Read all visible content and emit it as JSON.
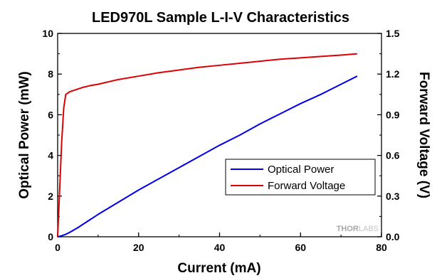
{
  "chart_data": {
    "type": "line",
    "title": "LED970L Sample L-I-V Characteristics",
    "xlabel": "Current (mA)",
    "ylabel": "Optical Power (mW)",
    "y2label": "Forward Voltage (V)",
    "xlim": [
      0,
      80
    ],
    "ylim": [
      0,
      10
    ],
    "y2lim": [
      0,
      1.5
    ],
    "xticks": [
      "0",
      "20",
      "40",
      "60",
      "80"
    ],
    "yticks": [
      "0",
      "2",
      "4",
      "6",
      "8",
      "10"
    ],
    "y2ticks": [
      "0.0",
      "0.3",
      "0.6",
      "0.9",
      "1.2",
      "1.5"
    ],
    "grid": false,
    "legend_position": "bottom-right",
    "series": [
      {
        "name": "Optical Power",
        "axis": "left",
        "color": "#0000ee",
        "x": [
          0,
          1,
          2,
          3,
          5,
          10,
          15,
          20,
          25,
          30,
          35,
          40,
          45,
          50,
          55,
          60,
          65,
          70,
          74
        ],
        "y": [
          0,
          0.05,
          0.12,
          0.22,
          0.45,
          1.1,
          1.7,
          2.3,
          2.85,
          3.4,
          3.95,
          4.5,
          5.0,
          5.55,
          6.05,
          6.55,
          7.0,
          7.5,
          7.9
        ]
      },
      {
        "name": "Forward Voltage",
        "axis": "right",
        "color": "#dd0000",
        "x": [
          0,
          0.5,
          1,
          1.5,
          2,
          3,
          4,
          6,
          8,
          10,
          15,
          20,
          25,
          30,
          35,
          40,
          45,
          50,
          55,
          60,
          65,
          70,
          74
        ],
        "y": [
          0,
          0.35,
          0.7,
          0.95,
          1.05,
          1.07,
          1.08,
          1.1,
          1.115,
          1.125,
          1.16,
          1.185,
          1.21,
          1.23,
          1.25,
          1.265,
          1.28,
          1.295,
          1.31,
          1.32,
          1.33,
          1.34,
          1.35
        ]
      }
    ]
  },
  "watermark": {
    "brand_bold": "THOR",
    "brand_light": "LABS"
  }
}
